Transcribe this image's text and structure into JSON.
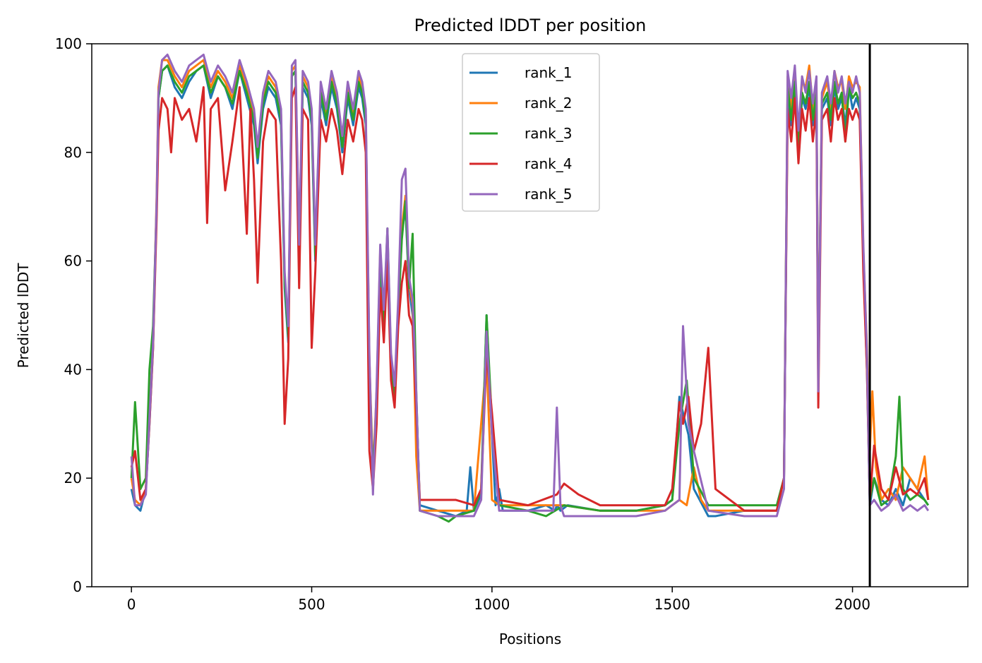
{
  "chart_data": {
    "type": "line",
    "title": "Predicted lDDT per position",
    "xlabel": "Positions",
    "ylabel": "Predicted lDDT",
    "xlim": [
      -110,
      2320
    ],
    "ylim": [
      0,
      100
    ],
    "xticks": [
      0,
      500,
      1000,
      1500,
      2000
    ],
    "yticks": [
      0,
      20,
      40,
      60,
      80,
      100
    ],
    "grid": false,
    "legend_position": "upper-center",
    "vline": {
      "x": 2048,
      "color": "#000000"
    },
    "series": [
      {
        "name": "rank_1",
        "color": "#1f77b4",
        "x": [
          0,
          10,
          25,
          40,
          50,
          60,
          70,
          75,
          85,
          100,
          120,
          140,
          160,
          180,
          200,
          220,
          240,
          260,
          280,
          300,
          320,
          340,
          350,
          365,
          380,
          400,
          415,
          425,
          435,
          445,
          455,
          465,
          475,
          490,
          500,
          510,
          525,
          540,
          555,
          570,
          585,
          600,
          615,
          630,
          640,
          650,
          660,
          670,
          680,
          690,
          700,
          710,
          720,
          730,
          740,
          750,
          760,
          770,
          780,
          790,
          800,
          850,
          900,
          930,
          940,
          950,
          970,
          985,
          1000,
          1010,
          1020,
          1030,
          1100,
          1150,
          1175,
          1180,
          1190,
          1210,
          1300,
          1400,
          1480,
          1500,
          1520,
          1530,
          1545,
          1560,
          1600,
          1620,
          1700,
          1790,
          1810,
          1820,
          1830,
          1840,
          1850,
          1860,
          1870,
          1880,
          1890,
          1900,
          1905,
          1915,
          1930,
          1940,
          1950,
          1960,
          1970,
          1980,
          1990,
          2000,
          2010,
          2020,
          2030,
          2040,
          2048,
          2060,
          2080,
          2100,
          2120,
          2140,
          2160,
          2180,
          2200,
          2210
        ],
        "y": [
          18,
          15,
          14,
          18,
          30,
          44,
          70,
          90,
          95,
          96,
          92,
          90,
          93,
          95,
          96,
          90,
          94,
          92,
          88,
          95,
          90,
          85,
          78,
          88,
          92,
          90,
          85,
          55,
          45,
          94,
          95,
          60,
          92,
          90,
          85,
          60,
          90,
          85,
          92,
          88,
          80,
          90,
          85,
          92,
          90,
          85,
          40,
          20,
          35,
          60,
          48,
          65,
          40,
          35,
          50,
          65,
          70,
          55,
          50,
          35,
          15,
          14,
          13,
          14,
          22,
          14,
          17,
          50,
          28,
          15,
          18,
          14,
          14,
          15,
          14,
          15,
          14,
          15,
          14,
          14,
          15,
          16,
          35,
          32,
          28,
          18,
          13,
          13,
          14,
          14,
          20,
          90,
          85,
          92,
          80,
          90,
          88,
          92,
          85,
          90,
          40,
          88,
          90,
          85,
          92,
          88,
          90,
          85,
          92,
          88,
          90,
          88,
          60,
          40,
          15,
          20,
          16,
          15,
          18,
          15,
          20,
          18,
          16,
          15
        ]
      },
      {
        "name": "rank_2",
        "color": "#ff7f0e",
        "x": [
          0,
          10,
          25,
          40,
          50,
          60,
          70,
          75,
          85,
          100,
          120,
          140,
          160,
          180,
          200,
          220,
          240,
          260,
          280,
          300,
          320,
          340,
          350,
          365,
          380,
          400,
          415,
          425,
          435,
          445,
          455,
          465,
          475,
          490,
          500,
          510,
          525,
          540,
          555,
          570,
          585,
          600,
          615,
          630,
          640,
          650,
          660,
          670,
          680,
          690,
          700,
          710,
          720,
          730,
          740,
          750,
          760,
          770,
          780,
          790,
          800,
          850,
          900,
          950,
          985,
          1000,
          1020,
          1100,
          1200,
          1300,
          1400,
          1480,
          1500,
          1520,
          1540,
          1560,
          1580,
          1600,
          1700,
          1790,
          1810,
          1820,
          1830,
          1840,
          1850,
          1860,
          1870,
          1880,
          1890,
          1900,
          1905,
          1915,
          1930,
          1940,
          1950,
          1960,
          1970,
          1980,
          1990,
          2000,
          2010,
          2020,
          2030,
          2040,
          2048,
          2055,
          2065,
          2080,
          2100,
          2120,
          2140,
          2160,
          2180,
          2200,
          2210
        ],
        "y": [
          20,
          16,
          15,
          18,
          32,
          45,
          72,
          92,
          97,
          97,
          94,
          92,
          95,
          96,
          97,
          92,
          95,
          93,
          90,
          96,
          92,
          87,
          80,
          90,
          94,
          92,
          87,
          57,
          47,
          95,
          96,
          62,
          94,
          92,
          87,
          62,
          92,
          87,
          94,
          90,
          82,
          92,
          87,
          94,
          92,
          87,
          42,
          21,
          36,
          62,
          50,
          64,
          42,
          36,
          52,
          66,
          72,
          56,
          52,
          24,
          14,
          14,
          14,
          14,
          42,
          16,
          15,
          15,
          15,
          14,
          14,
          14,
          15,
          16,
          15,
          22,
          16,
          14,
          14,
          14,
          20,
          94,
          88,
          95,
          82,
          93,
          92,
          96,
          88,
          93,
          40,
          90,
          93,
          88,
          95,
          92,
          93,
          88,
          94,
          92,
          93,
          92,
          62,
          44,
          25,
          36,
          22,
          16,
          18,
          16,
          22,
          20,
          18,
          24,
          16
        ]
      },
      {
        "name": "rank_3",
        "color": "#2ca02c",
        "x": [
          0,
          10,
          25,
          40,
          50,
          60,
          70,
          75,
          85,
          100,
          120,
          140,
          160,
          180,
          200,
          220,
          240,
          260,
          280,
          300,
          320,
          340,
          350,
          365,
          380,
          400,
          415,
          425,
          435,
          445,
          455,
          465,
          475,
          490,
          500,
          510,
          525,
          540,
          555,
          570,
          585,
          600,
          615,
          630,
          640,
          650,
          660,
          670,
          680,
          690,
          700,
          710,
          720,
          730,
          740,
          750,
          760,
          770,
          780,
          790,
          800,
          850,
          880,
          900,
          950,
          970,
          985,
          1000,
          1020,
          1100,
          1150,
          1200,
          1300,
          1400,
          1480,
          1500,
          1520,
          1540,
          1560,
          1600,
          1700,
          1790,
          1810,
          1820,
          1830,
          1840,
          1850,
          1860,
          1870,
          1880,
          1890,
          1900,
          1905,
          1915,
          1930,
          1940,
          1950,
          1960,
          1970,
          1980,
          1990,
          2000,
          2010,
          2020,
          2030,
          2040,
          2048,
          2060,
          2080,
          2100,
          2120,
          2130,
          2140,
          2160,
          2180,
          2200,
          2210
        ],
        "y": [
          20,
          34,
          18,
          20,
          40,
          48,
          70,
          90,
          95,
          96,
          93,
          91,
          94,
          95,
          96,
          91,
          94,
          92,
          89,
          95,
          91,
          86,
          79,
          89,
          93,
          91,
          86,
          56,
          46,
          94,
          95,
          61,
          93,
          91,
          86,
          61,
          91,
          86,
          93,
          89,
          81,
          91,
          86,
          93,
          91,
          86,
          41,
          20,
          35,
          61,
          49,
          66,
          41,
          35,
          51,
          64,
          71,
          55,
          65,
          36,
          14,
          13,
          12,
          13,
          14,
          18,
          50,
          30,
          15,
          14,
          13,
          15,
          14,
          14,
          15,
          16,
          30,
          38,
          20,
          15,
          15,
          15,
          20,
          92,
          86,
          93,
          80,
          91,
          89,
          93,
          86,
          91,
          38,
          89,
          91,
          86,
          93,
          89,
          91,
          82,
          92,
          90,
          91,
          89,
          61,
          42,
          16,
          20,
          15,
          16,
          24,
          35,
          18,
          16,
          17,
          16,
          15
        ]
      },
      {
        "name": "rank_4",
        "color": "#d62728",
        "x": [
          0,
          10,
          25,
          40,
          50,
          60,
          70,
          75,
          85,
          100,
          110,
          120,
          140,
          160,
          180,
          200,
          210,
          220,
          240,
          260,
          280,
          300,
          320,
          330,
          340,
          350,
          365,
          380,
          400,
          415,
          425,
          435,
          445,
          455,
          465,
          475,
          490,
          500,
          510,
          525,
          540,
          555,
          570,
          585,
          600,
          615,
          630,
          640,
          650,
          660,
          670,
          680,
          690,
          700,
          710,
          720,
          730,
          740,
          750,
          760,
          770,
          780,
          790,
          800,
          850,
          900,
          950,
          970,
          985,
          1000,
          1020,
          1100,
          1180,
          1200,
          1240,
          1300,
          1400,
          1480,
          1500,
          1520,
          1530,
          1545,
          1560,
          1580,
          1600,
          1620,
          1700,
          1790,
          1810,
          1820,
          1830,
          1840,
          1850,
          1860,
          1870,
          1880,
          1890,
          1900,
          1905,
          1915,
          1930,
          1940,
          1950,
          1960,
          1970,
          1980,
          1990,
          2000,
          2010,
          2020,
          2030,
          2040,
          2048,
          2060,
          2080,
          2100,
          2120,
          2140,
          2160,
          2180,
          2200,
          2210
        ],
        "y": [
          22,
          25,
          16,
          18,
          30,
          44,
          68,
          84,
          90,
          88,
          80,
          90,
          86,
          88,
          82,
          92,
          67,
          88,
          90,
          73,
          82,
          92,
          65,
          88,
          75,
          56,
          82,
          88,
          86,
          60,
          30,
          42,
          90,
          92,
          55,
          88,
          86,
          44,
          58,
          86,
          82,
          88,
          84,
          76,
          86,
          82,
          88,
          86,
          80,
          25,
          18,
          30,
          55,
          45,
          60,
          38,
          33,
          48,
          56,
          60,
          50,
          48,
          32,
          16,
          16,
          16,
          15,
          18,
          43,
          32,
          16,
          15,
          17,
          19,
          17,
          15,
          15,
          15,
          18,
          34,
          30,
          35,
          25,
          30,
          44,
          18,
          14,
          14,
          20,
          88,
          82,
          90,
          78,
          88,
          84,
          90,
          82,
          88,
          33,
          86,
          88,
          82,
          90,
          86,
          88,
          82,
          88,
          86,
          88,
          86,
          58,
          40,
          16,
          26,
          18,
          16,
          22,
          17,
          18,
          17,
          20,
          16
        ]
      },
      {
        "name": "rank_5",
        "color": "#9467bd",
        "x": [
          0,
          10,
          25,
          40,
          50,
          60,
          70,
          75,
          85,
          100,
          120,
          140,
          160,
          180,
          200,
          220,
          240,
          260,
          280,
          300,
          320,
          340,
          350,
          365,
          380,
          400,
          415,
          425,
          435,
          445,
          455,
          465,
          475,
          490,
          500,
          510,
          525,
          540,
          555,
          570,
          585,
          600,
          615,
          630,
          640,
          650,
          660,
          670,
          680,
          690,
          700,
          710,
          720,
          730,
          740,
          750,
          760,
          770,
          780,
          790,
          800,
          850,
          900,
          950,
          970,
          985,
          1000,
          1020,
          1100,
          1170,
          1180,
          1190,
          1200,
          1300,
          1400,
          1480,
          1500,
          1520,
          1530,
          1545,
          1560,
          1600,
          1700,
          1790,
          1810,
          1820,
          1830,
          1840,
          1850,
          1860,
          1870,
          1880,
          1890,
          1900,
          1905,
          1915,
          1930,
          1940,
          1950,
          1960,
          1970,
          1980,
          1990,
          2000,
          2010,
          2020,
          2030,
          2040,
          2048,
          2060,
          2080,
          2100,
          2120,
          2140,
          2160,
          2180,
          2200,
          2210
        ],
        "y": [
          24,
          15,
          15,
          17,
          31,
          45,
          71,
          91,
          97,
          98,
          95,
          93,
          96,
          97,
          98,
          93,
          96,
          94,
          91,
          97,
          93,
          88,
          81,
          91,
          95,
          93,
          88,
          58,
          48,
          96,
          97,
          63,
          95,
          93,
          88,
          63,
          93,
          88,
          95,
          91,
          83,
          93,
          88,
          95,
          93,
          88,
          43,
          17,
          37,
          63,
          51,
          66,
          43,
          37,
          53,
          75,
          77,
          57,
          53,
          36,
          14,
          13,
          13,
          13,
          16,
          47,
          28,
          14,
          14,
          14,
          33,
          15,
          13,
          13,
          13,
          14,
          15,
          16,
          48,
          30,
          25,
          14,
          13,
          13,
          18,
          95,
          90,
          96,
          84,
          94,
          91,
          95,
          89,
          94,
          36,
          91,
          94,
          89,
          95,
          91,
          94,
          89,
          93,
          91,
          94,
          91,
          63,
          43,
          15,
          16,
          14,
          15,
          17,
          14,
          15,
          14,
          15,
          14
        ]
      }
    ]
  }
}
